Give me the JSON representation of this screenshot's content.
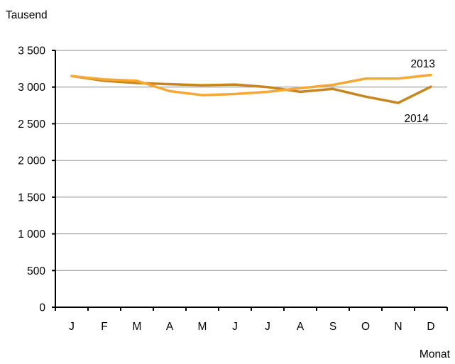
{
  "chart_data": {
    "type": "line",
    "title": "",
    "ylabel": "Tausend",
    "xlabel": "Monat",
    "categories": [
      "J",
      "F",
      "M",
      "A",
      "M",
      "J",
      "J",
      "A",
      "S",
      "O",
      "N",
      "D"
    ],
    "ylim": [
      0,
      3500
    ],
    "yticks": [
      0,
      500,
      1000,
      1500,
      2000,
      2500,
      3000,
      3500
    ],
    "ytick_labels": [
      "0",
      "500",
      "1 000",
      "1 500",
      "2 000",
      "2 500",
      "3 000",
      "3 500"
    ],
    "grid": true,
    "series": [
      {
        "name": "2013",
        "color": "#F7A834",
        "values": [
          3150,
          3105,
          3085,
          2945,
          2890,
          2905,
          2935,
          2985,
          3030,
          3115,
          3115,
          3165
        ]
      },
      {
        "name": "2014",
        "color": "#C8861E",
        "values": [
          3150,
          3085,
          3055,
          3040,
          3025,
          3035,
          3000,
          2935,
          2975,
          2870,
          2785,
          3005
        ]
      }
    ]
  }
}
